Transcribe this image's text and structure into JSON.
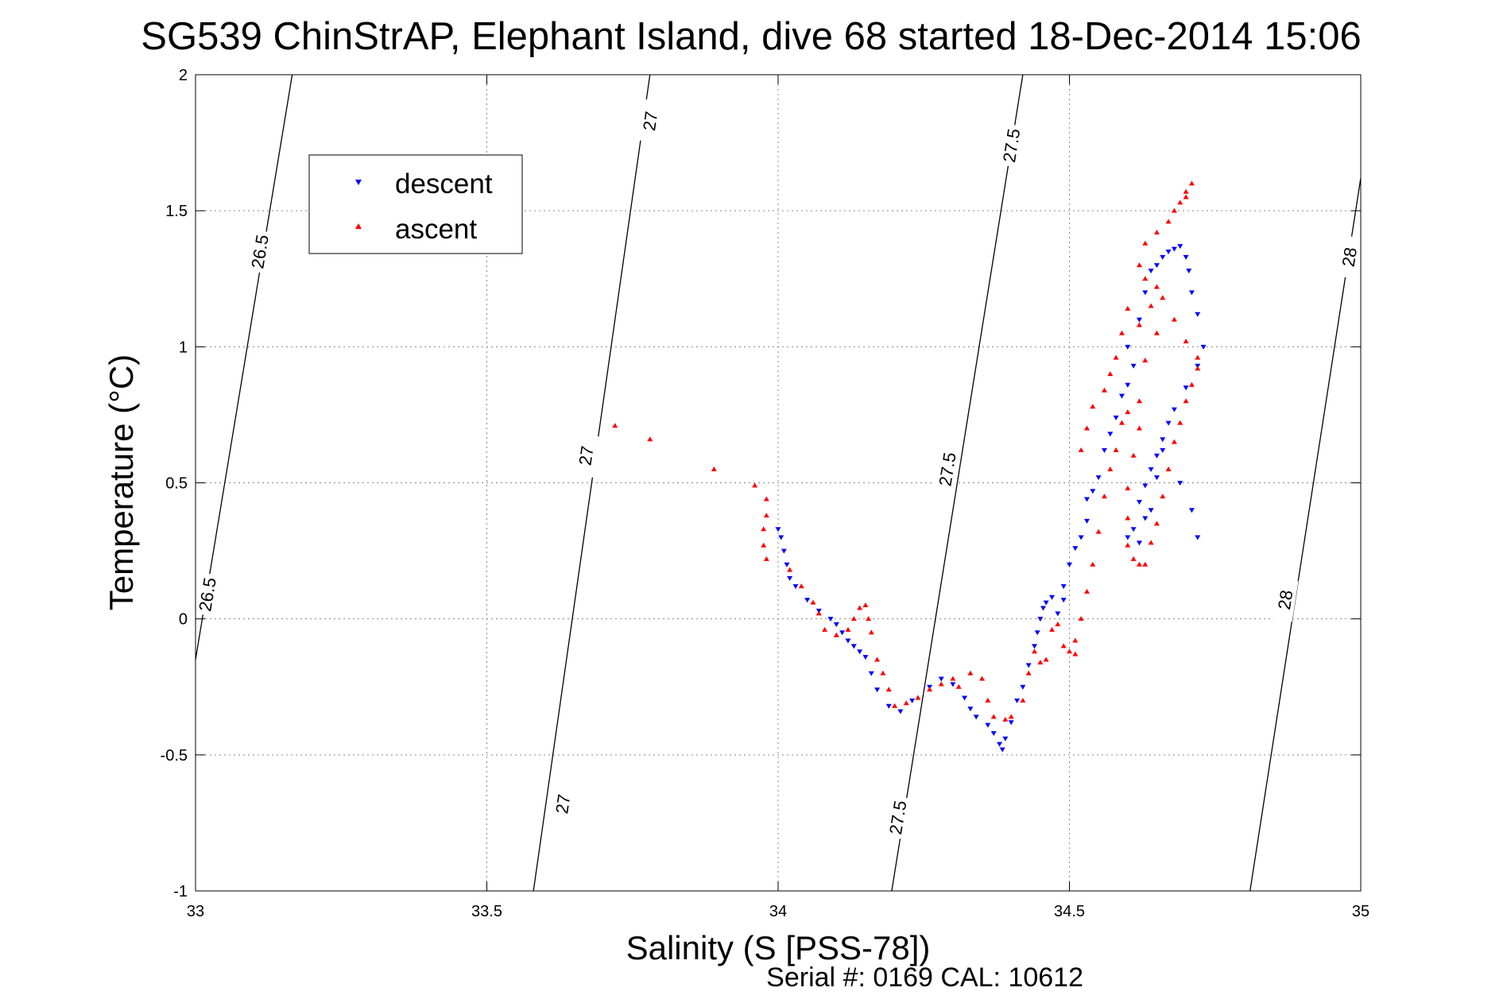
{
  "chart_data": {
    "type": "scatter",
    "title": "SG539 ChinStrAP, Elephant Island, dive 68 started 18-Dec-2014 15:06",
    "xlabel": "Salinity (S [PSS-78])",
    "ylabel": "Temperature (°C)",
    "footer": "Serial #: 0169 CAL: 10612",
    "xlim": [
      33,
      35
    ],
    "ylim": [
      -1,
      2
    ],
    "x_ticks": [
      33,
      33.5,
      34,
      34.5,
      35
    ],
    "y_ticks": [
      -1,
      -0.5,
      0,
      0.5,
      1,
      1.5,
      2
    ],
    "x_tick_labels": [
      "33",
      "33.5",
      "34",
      "34.5",
      "35"
    ],
    "y_tick_labels": [
      "-1",
      "-0.5",
      "0",
      "0.5",
      "1",
      "1.5",
      "2"
    ],
    "grid": true,
    "legend_position": "top-left",
    "isopycnals": [
      {
        "label": "26.5",
        "points": [
          [
            33.0,
            -0.15
          ],
          [
            33.166,
            2.0
          ]
        ],
        "label_positions": [
          [
            33.11,
            1.35
          ],
          [
            33.02,
            0.09
          ]
        ]
      },
      {
        "label": "27",
        "points": [
          [
            33.58,
            -1.0
          ],
          [
            33.78,
            2.0
          ]
        ],
        "label_positions": [
          [
            33.63,
            -0.68
          ],
          [
            33.67,
            0.6
          ],
          [
            33.78,
            1.83
          ]
        ]
      },
      {
        "label": "27.5",
        "points": [
          [
            34.195,
            -1.0
          ],
          [
            34.42,
            2.0
          ]
        ],
        "label_positions": [
          [
            34.205,
            -0.73
          ],
          [
            34.29,
            0.55
          ],
          [
            34.4,
            1.74
          ]
        ]
      },
      {
        "label": "28",
        "points": [
          [
            34.81,
            -1.0
          ],
          [
            35.0,
            1.62
          ]
        ],
        "label_positions": [
          [
            34.87,
            0.07
          ],
          [
            34.98,
            1.33
          ]
        ]
      }
    ],
    "series": [
      {
        "name": "descent",
        "color": "#0000ff",
        "marker": "triangle-down",
        "points": [
          [
            34.0,
            0.33
          ],
          [
            34.005,
            0.3
          ],
          [
            34.01,
            0.25
          ],
          [
            34.015,
            0.2
          ],
          [
            34.02,
            0.15
          ],
          [
            34.03,
            0.12
          ],
          [
            34.05,
            0.07
          ],
          [
            34.07,
            0.03
          ],
          [
            34.09,
            0.0
          ],
          [
            34.1,
            -0.02
          ],
          [
            34.11,
            -0.05
          ],
          [
            34.12,
            -0.08
          ],
          [
            34.13,
            -0.1
          ],
          [
            34.14,
            -0.12
          ],
          [
            34.15,
            -0.14
          ],
          [
            34.16,
            -0.2
          ],
          [
            34.17,
            -0.26
          ],
          [
            34.19,
            -0.32
          ],
          [
            34.21,
            -0.34
          ],
          [
            34.23,
            -0.3
          ],
          [
            34.26,
            -0.25
          ],
          [
            34.28,
            -0.22
          ],
          [
            34.3,
            -0.24
          ],
          [
            34.32,
            -0.29
          ],
          [
            34.33,
            -0.33
          ],
          [
            34.34,
            -0.36
          ],
          [
            34.36,
            -0.39
          ],
          [
            34.37,
            -0.42
          ],
          [
            34.38,
            -0.46
          ],
          [
            34.385,
            -0.48
          ],
          [
            34.39,
            -0.44
          ],
          [
            34.4,
            -0.38
          ],
          [
            34.41,
            -0.3
          ],
          [
            34.42,
            -0.25
          ],
          [
            34.43,
            -0.17
          ],
          [
            34.44,
            -0.1
          ],
          [
            34.445,
            -0.05
          ],
          [
            34.45,
            0.0
          ],
          [
            34.455,
            0.04
          ],
          [
            34.46,
            0.06
          ],
          [
            34.47,
            0.08
          ],
          [
            34.48,
            0.02
          ],
          [
            34.49,
            0.07
          ],
          [
            34.49,
            0.12
          ],
          [
            34.5,
            0.2
          ],
          [
            34.51,
            0.26
          ],
          [
            34.52,
            0.3
          ],
          [
            34.53,
            0.36
          ],
          [
            34.53,
            0.44
          ],
          [
            34.54,
            0.47
          ],
          [
            34.55,
            0.52
          ],
          [
            34.56,
            0.62
          ],
          [
            34.57,
            0.68
          ],
          [
            34.58,
            0.74
          ],
          [
            34.59,
            0.82
          ],
          [
            34.6,
            0.86
          ],
          [
            34.61,
            0.93
          ],
          [
            34.6,
            1.0
          ],
          [
            34.62,
            1.1
          ],
          [
            34.63,
            1.2
          ],
          [
            34.64,
            1.28
          ],
          [
            34.65,
            1.3
          ],
          [
            34.66,
            1.33
          ],
          [
            34.67,
            1.35
          ],
          [
            34.68,
            1.36
          ],
          [
            34.69,
            1.37
          ],
          [
            34.7,
            1.33
          ],
          [
            34.705,
            1.28
          ],
          [
            34.71,
            1.2
          ],
          [
            34.72,
            1.12
          ],
          [
            34.73,
            1.0
          ],
          [
            34.72,
            0.93
          ],
          [
            34.7,
            0.85
          ],
          [
            34.68,
            0.77
          ],
          [
            34.67,
            0.72
          ],
          [
            34.66,
            0.66
          ],
          [
            34.65,
            0.6
          ],
          [
            34.64,
            0.55
          ],
          [
            34.63,
            0.49
          ],
          [
            34.62,
            0.43
          ],
          [
            34.63,
            0.37
          ],
          [
            34.61,
            0.33
          ],
          [
            34.6,
            0.3
          ],
          [
            34.62,
            0.28
          ],
          [
            34.64,
            0.4
          ],
          [
            34.65,
            0.52
          ],
          [
            34.66,
            0.62
          ],
          [
            34.69,
            0.5
          ],
          [
            34.71,
            0.4
          ],
          [
            34.72,
            0.3
          ]
        ]
      },
      {
        "name": "ascent",
        "color": "#ff0000",
        "marker": "triangle-up",
        "points": [
          [
            33.72,
            0.71
          ],
          [
            33.78,
            0.66
          ],
          [
            33.89,
            0.55
          ],
          [
            33.96,
            0.49
          ],
          [
            33.98,
            0.44
          ],
          [
            33.98,
            0.38
          ],
          [
            33.975,
            0.33
          ],
          [
            33.975,
            0.27
          ],
          [
            33.98,
            0.22
          ],
          [
            34.02,
            0.18
          ],
          [
            34.04,
            0.12
          ],
          [
            34.06,
            0.06
          ],
          [
            34.07,
            0.02
          ],
          [
            34.08,
            -0.04
          ],
          [
            34.1,
            -0.06
          ],
          [
            34.12,
            -0.04
          ],
          [
            34.13,
            0.0
          ],
          [
            34.14,
            0.04
          ],
          [
            34.15,
            0.05
          ],
          [
            34.155,
            0.0
          ],
          [
            34.16,
            -0.05
          ],
          [
            34.17,
            -0.15
          ],
          [
            34.18,
            -0.2
          ],
          [
            34.19,
            -0.26
          ],
          [
            34.2,
            -0.32
          ],
          [
            34.22,
            -0.31
          ],
          [
            34.24,
            -0.29
          ],
          [
            34.26,
            -0.26
          ],
          [
            34.28,
            -0.24
          ],
          [
            34.3,
            -0.22
          ],
          [
            34.31,
            -0.25
          ],
          [
            34.33,
            -0.2
          ],
          [
            34.35,
            -0.22
          ],
          [
            34.36,
            -0.3
          ],
          [
            34.37,
            -0.36
          ],
          [
            34.39,
            -0.37
          ],
          [
            34.4,
            -0.36
          ],
          [
            34.42,
            -0.3
          ],
          [
            34.43,
            -0.2
          ],
          [
            34.44,
            -0.12
          ],
          [
            34.45,
            -0.16
          ],
          [
            34.46,
            -0.15
          ],
          [
            34.47,
            -0.04
          ],
          [
            34.48,
            -0.02
          ],
          [
            34.49,
            -0.1
          ],
          [
            34.5,
            -0.12
          ],
          [
            34.51,
            -0.13
          ],
          [
            34.51,
            -0.08
          ],
          [
            34.52,
            0.0
          ],
          [
            34.53,
            0.1
          ],
          [
            34.54,
            0.2
          ],
          [
            34.55,
            0.32
          ],
          [
            34.56,
            0.45
          ],
          [
            34.57,
            0.55
          ],
          [
            34.58,
            0.62
          ],
          [
            34.59,
            0.72
          ],
          [
            34.6,
            0.76
          ],
          [
            34.62,
            0.8
          ],
          [
            34.62,
            0.7
          ],
          [
            34.61,
            0.6
          ],
          [
            34.6,
            0.48
          ],
          [
            34.6,
            0.37
          ],
          [
            34.6,
            0.27
          ],
          [
            34.61,
            0.22
          ],
          [
            34.62,
            0.2
          ],
          [
            34.63,
            0.2
          ],
          [
            34.64,
            0.28
          ],
          [
            34.65,
            0.35
          ],
          [
            34.66,
            0.45
          ],
          [
            34.67,
            0.55
          ],
          [
            34.68,
            0.65
          ],
          [
            34.69,
            0.72
          ],
          [
            34.7,
            0.8
          ],
          [
            34.71,
            0.86
          ],
          [
            34.72,
            0.92
          ],
          [
            34.72,
            0.96
          ],
          [
            34.7,
            1.02
          ],
          [
            34.68,
            1.1
          ],
          [
            34.66,
            1.18
          ],
          [
            34.65,
            1.22
          ],
          [
            34.63,
            1.25
          ],
          [
            34.62,
            1.3
          ],
          [
            34.63,
            1.38
          ],
          [
            34.65,
            1.42
          ],
          [
            34.67,
            1.46
          ],
          [
            34.68,
            1.5
          ],
          [
            34.69,
            1.53
          ],
          [
            34.7,
            1.57
          ],
          [
            34.71,
            1.6
          ],
          [
            34.7,
            1.55
          ],
          [
            34.6,
            1.14
          ],
          [
            34.59,
            1.05
          ],
          [
            34.58,
            0.96
          ],
          [
            34.57,
            0.9
          ],
          [
            34.56,
            0.84
          ],
          [
            34.54,
            0.78
          ],
          [
            34.53,
            0.7
          ],
          [
            34.52,
            0.62
          ],
          [
            34.63,
            0.95
          ],
          [
            34.65,
            1.05
          ],
          [
            34.64,
            1.15
          ],
          [
            34.62,
            1.08
          ]
        ]
      }
    ]
  }
}
